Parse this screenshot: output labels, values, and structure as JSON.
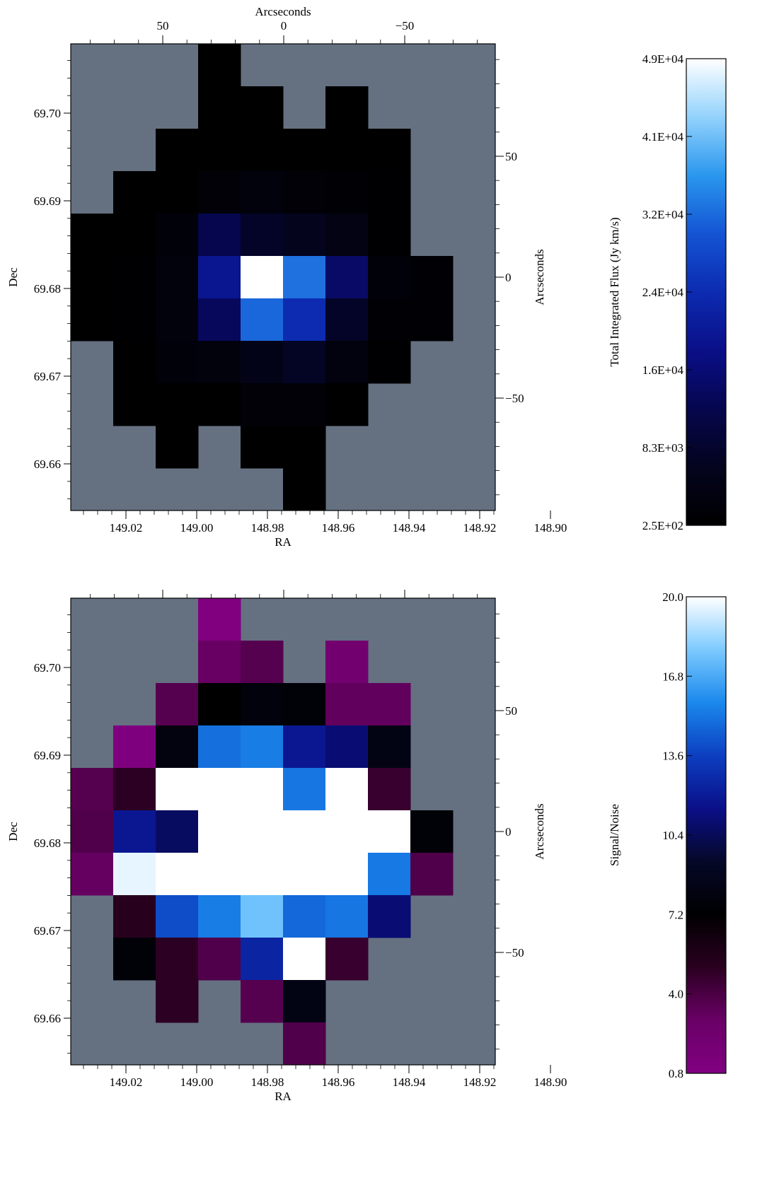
{
  "colors": {
    "masked": "#657181",
    "flux_stops": [
      "#000000",
      "#04041e",
      "#06064e",
      "#0a0f88",
      "#0c2bb0",
      "#1454d4",
      "#2a97ee",
      "#93d2fc",
      "#ffffff"
    ],
    "sn_stops": [
      "#800080",
      "#6a0066",
      "#2a0020",
      "#000000",
      "#050828",
      "#0a0f88",
      "#0c3fc0",
      "#1a88ec",
      "#7ccafe",
      "#ffffff"
    ]
  },
  "chart_data": [
    {
      "type": "heatmap",
      "xlabel": "RA",
      "ylabel": "Dec",
      "top_axis_label": "Arcseconds",
      "right_axis_label": "Arcseconds",
      "x_ticks": [
        "149.02",
        "149.00",
        "148.98",
        "148.96",
        "148.94",
        "148.92",
        "148.90"
      ],
      "y_ticks": [
        "69.70",
        "69.69",
        "69.68",
        "69.67",
        "69.66"
      ],
      "top_ticks": [
        "50",
        "0",
        "−50"
      ],
      "right_ticks": [
        "50",
        "0",
        "−50"
      ],
      "colorbar_label": "Total Integrated Flux (Jy km/s)",
      "colorbar_ticks": [
        "4.9E+04",
        "4.1E+04",
        "3.2E+04",
        "2.4E+04",
        "1.6E+04",
        "8.3E+03",
        "2.5E+02"
      ],
      "colorbar_range": [
        250,
        49000
      ],
      "grid_cols": 10,
      "grid_rows": 11,
      "cells": [
        [
          null,
          null,
          null,
          0,
          null,
          null,
          null,
          null,
          null,
          null
        ],
        [
          null,
          null,
          null,
          0,
          0,
          null,
          0,
          null,
          null,
          null
        ],
        [
          null,
          null,
          0,
          0,
          0,
          0,
          0,
          0,
          null,
          null
        ],
        [
          null,
          0,
          0,
          0.03,
          0.05,
          0.03,
          0.02,
          0.01,
          null,
          null
        ],
        [
          0,
          0,
          0.04,
          0.25,
          0.15,
          0.12,
          0.08,
          0.01,
          null,
          null
        ],
        [
          0,
          0.01,
          0.05,
          0.4,
          1.0,
          0.68,
          0.3,
          0.04,
          0.02,
          null
        ],
        [
          0,
          0.01,
          0.05,
          0.28,
          0.66,
          0.5,
          0.15,
          0.02,
          0.02,
          null
        ],
        [
          null,
          0,
          0.04,
          0.05,
          0.1,
          0.14,
          0.06,
          0.01,
          null,
          null
        ],
        [
          null,
          0,
          0,
          0,
          0.03,
          0.03,
          0,
          null,
          null,
          null
        ],
        [
          null,
          null,
          0,
          null,
          0,
          0,
          null,
          null,
          null,
          null
        ],
        [
          null,
          null,
          null,
          null,
          null,
          0,
          null,
          null,
          null,
          null
        ]
      ]
    },
    {
      "type": "heatmap",
      "xlabel": "RA",
      "ylabel": "Dec",
      "top_axis_label": "Arcseconds",
      "right_axis_label": "Arcseconds",
      "x_ticks": [
        "149.02",
        "149.00",
        "148.98",
        "148.96",
        "148.94",
        "148.92",
        "148.90"
      ],
      "y_ticks": [
        "69.70",
        "69.69",
        "69.68",
        "69.67",
        "69.66"
      ],
      "top_ticks": [
        "50",
        "0",
        "−50"
      ],
      "right_ticks": [
        "50",
        "0",
        "−50"
      ],
      "colorbar_label": "Signal/Noise",
      "colorbar_ticks": [
        "20.0",
        "16.8",
        "13.6",
        "10.4",
        "7.2",
        "4.0",
        "0.8"
      ],
      "colorbar_range": [
        0.8,
        20.0
      ],
      "grid_cols": 10,
      "grid_rows": 11,
      "cells": [
        [
          null,
          null,
          null,
          0.8,
          null,
          null,
          null,
          null,
          null,
          null
        ],
        [
          null,
          null,
          null,
          3.0,
          3.6,
          null,
          2.2,
          null,
          null,
          null
        ],
        [
          null,
          null,
          3.6,
          7.2,
          7.8,
          7.6,
          3.2,
          3.2,
          null,
          null
        ],
        [
          null,
          0.9,
          8.0,
          15.0,
          15.4,
          11.8,
          11.0,
          8.2,
          null,
          null
        ],
        [
          3.6,
          5.0,
          20.0,
          20.0,
          20.0,
          15.2,
          20.0,
          4.6,
          null,
          null
        ],
        [
          3.8,
          11.8,
          10.6,
          20.0,
          20.0,
          20.0,
          20.0,
          20.0,
          7.6,
          null
        ],
        [
          3.1,
          19.6,
          20.0,
          20.0,
          20.0,
          20.0,
          20.0,
          15.3,
          3.8,
          null
        ],
        [
          null,
          5.2,
          14.0,
          15.4,
          17.6,
          14.8,
          15.2,
          11.0,
          null,
          null
        ],
        [
          null,
          7.6,
          5.0,
          3.8,
          12.4,
          20.0,
          4.6,
          null,
          null,
          null
        ],
        [
          null,
          null,
          5.0,
          null,
          3.6,
          8.2,
          null,
          null,
          null,
          null
        ],
        [
          null,
          null,
          null,
          null,
          null,
          3.8,
          null,
          null,
          null,
          null
        ]
      ]
    }
  ]
}
